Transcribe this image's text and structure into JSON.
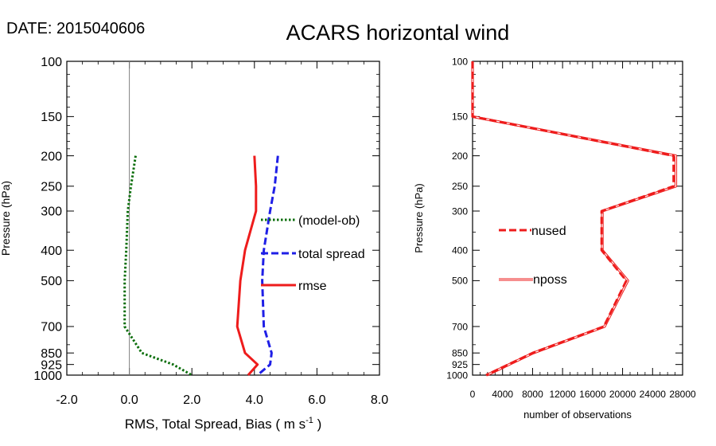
{
  "header": {
    "date_label": "DATE: 2015040606",
    "title": "ACARS horizontal wind"
  },
  "colors": {
    "bias": "#0b6e0b",
    "spread": "#1f1fe6",
    "rmse": "#ee1c1c",
    "zero_line": "#808080",
    "frame": "#000000"
  },
  "chart_data": [
    {
      "type": "line",
      "title": "ACARS horizontal wind",
      "xlabel": "RMS, Total Spread, Bias ( m s",
      "xlabel_sup": "-1",
      "xlabel_end": " )",
      "ylabel": "Pressure (hPa)",
      "xlim": [
        -2.0,
        8.0
      ],
      "ylim": [
        1000,
        100
      ],
      "y_scale": "log",
      "x_ticks": [
        -2.0,
        0.0,
        2.0,
        4.0,
        6.0,
        8.0
      ],
      "x_tick_labels": [
        "-2.0",
        "0.0",
        "2.0",
        "4.0",
        "6.0",
        "8.0"
      ],
      "y_ticks": [
        100,
        150,
        200,
        250,
        300,
        400,
        500,
        700,
        850,
        925,
        1000
      ],
      "y_tick_labels": [
        "100",
        "150",
        "200",
        "250",
        "300",
        "400",
        "500",
        "700",
        "850",
        "925",
        "1000"
      ],
      "legend_position": "right-middle",
      "series": [
        {
          "name": "(model-ob)",
          "style": "dotted",
          "color": "#0b6e0b",
          "pressure": [
            200,
            250,
            300,
            400,
            500,
            700,
            850,
            925,
            1000
          ],
          "values": [
            0.2,
            0.05,
            -0.05,
            -0.1,
            -0.15,
            -0.15,
            0.4,
            1.4,
            2.0
          ]
        },
        {
          "name": "total spread",
          "style": "dashed",
          "color": "#1f1fe6",
          "pressure": [
            200,
            250,
            300,
            400,
            500,
            700,
            850,
            925,
            1000
          ],
          "values": [
            4.75,
            4.65,
            4.5,
            4.3,
            4.25,
            4.3,
            4.55,
            4.5,
            4.1
          ]
        },
        {
          "name": "rmse",
          "style": "solid",
          "color": "#ee1c1c",
          "pressure": [
            200,
            250,
            300,
            400,
            500,
            700,
            850,
            925,
            1000
          ],
          "values": [
            4.0,
            4.05,
            4.05,
            3.7,
            3.55,
            3.45,
            3.7,
            4.1,
            3.8
          ]
        }
      ]
    },
    {
      "type": "line",
      "xlabel": "number of observations",
      "ylabel": "Pressure (hPa)",
      "xlim": [
        0,
        28000
      ],
      "ylim": [
        1000,
        100
      ],
      "y_scale": "log",
      "x_ticks": [
        0,
        4000,
        8000,
        12000,
        16000,
        20000,
        24000,
        28000
      ],
      "x_tick_labels": [
        "0",
        "4000",
        "8000",
        "12000",
        "16000",
        "20000",
        "24000",
        "28000"
      ],
      "y_ticks": [
        100,
        150,
        200,
        250,
        300,
        400,
        500,
        700,
        850,
        925,
        1000
      ],
      "y_tick_labels": [
        "100",
        "150",
        "200",
        "250",
        "300",
        "400",
        "500",
        "700",
        "850",
        "925",
        "1000"
      ],
      "legend_position": "left-middle",
      "series": [
        {
          "name": "nused",
          "style": "dashed",
          "color": "#ee1c1c",
          "pressure": [
            100,
            150,
            200,
            250,
            300,
            400,
            500,
            700,
            850,
            1000
          ],
          "values": [
            0,
            0,
            26800,
            26800,
            17200,
            17200,
            20500,
            17500,
            8000,
            1800
          ]
        },
        {
          "name": "nposs",
          "style": "thin-double",
          "color": "#ee1c1c",
          "pressure": [
            100,
            150,
            200,
            250,
            300,
            400,
            500,
            700,
            850,
            1000
          ],
          "values": [
            0,
            0,
            27100,
            27100,
            17300,
            17300,
            20700,
            17600,
            8100,
            1900
          ]
        }
      ]
    }
  ]
}
